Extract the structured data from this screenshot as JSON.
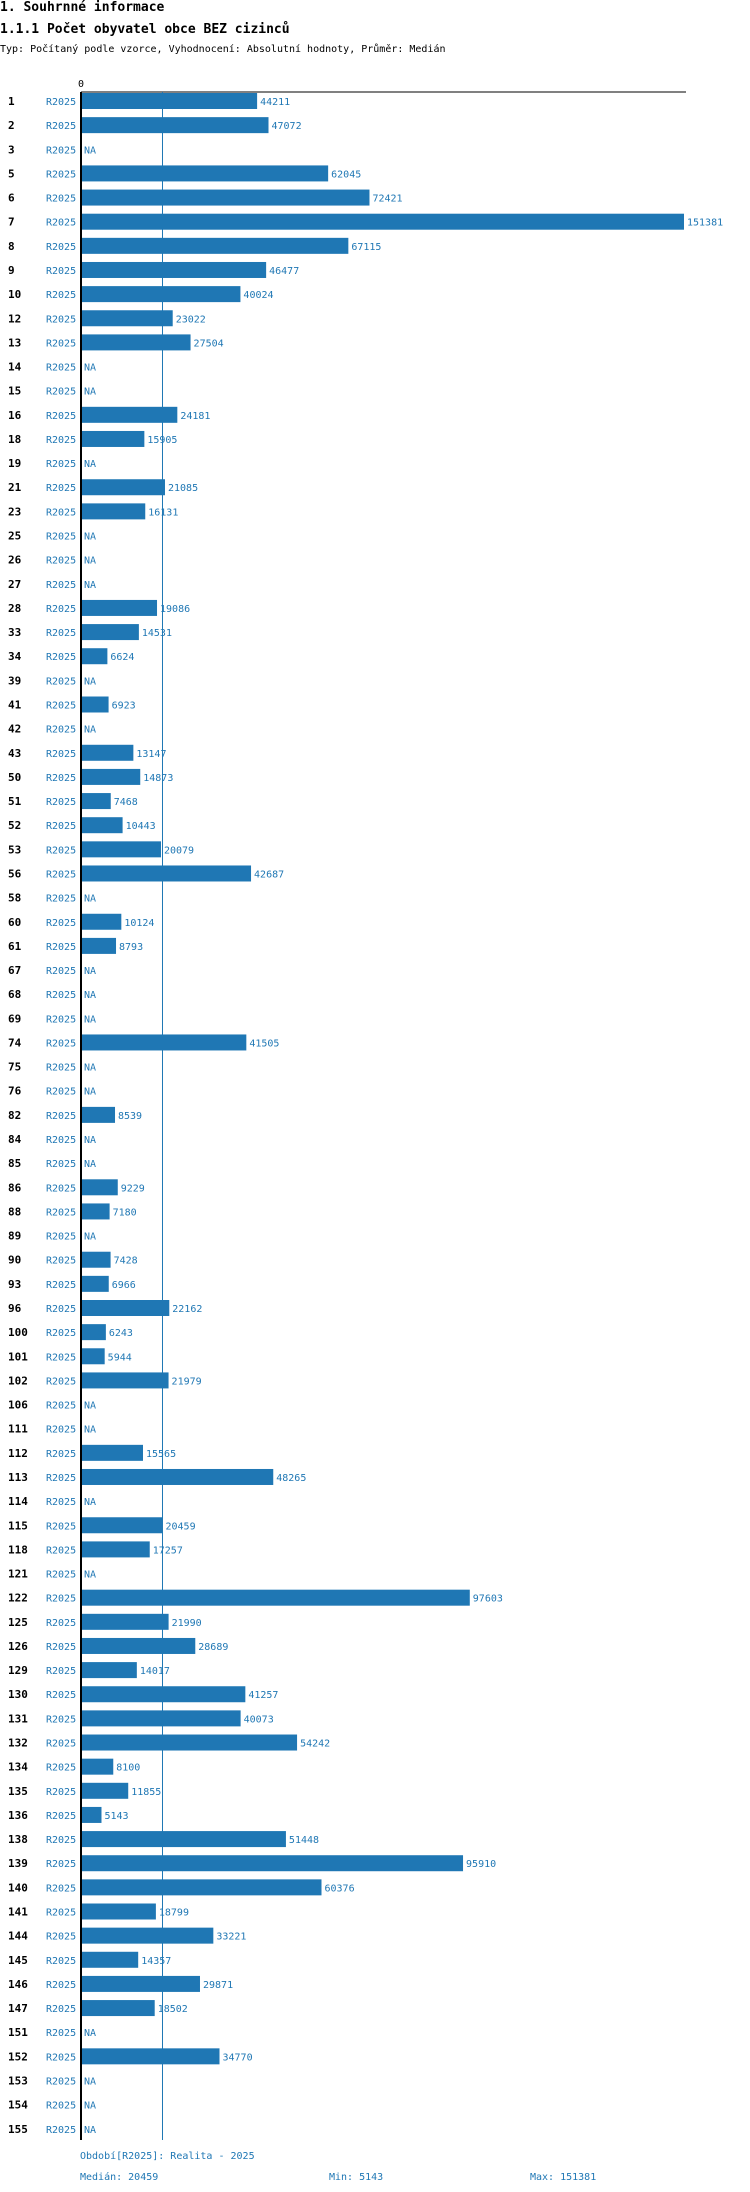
{
  "heading": "1. Souhrnné informace",
  "subheading": "1.1.1 Počet obyvatel obce BEZ cizinců",
  "description": "Typ: Počítaný podle vzorce, Vyhodnocení: Absolutní hodnoty, Průměr: Medián",
  "footer": {
    "period_line": "Období[R2025]: Realita - 2025",
    "median_label": "Medián: 20459",
    "min_label": "Min: 5143",
    "max_label": "Max: 151381"
  },
  "colors": {
    "bar": "#1f77b4",
    "axis": "#000000",
    "median_line": "#1f77b4"
  },
  "chart_data": {
    "type": "bar",
    "orientation": "horizontal",
    "title": "1.1.1 Počet obyvatel obce BEZ cizinců",
    "x_axis_start_label": "0",
    "xlim": [
      0,
      151381
    ],
    "median": 20459,
    "series_label": "R2025",
    "na_label": "NA",
    "categories": [
      "1",
      "2",
      "3",
      "5",
      "6",
      "7",
      "8",
      "9",
      "10",
      "12",
      "13",
      "14",
      "15",
      "16",
      "18",
      "19",
      "21",
      "23",
      "25",
      "26",
      "27",
      "28",
      "33",
      "34",
      "39",
      "41",
      "42",
      "43",
      "50",
      "51",
      "52",
      "53",
      "56",
      "58",
      "60",
      "61",
      "67",
      "68",
      "69",
      "74",
      "75",
      "76",
      "82",
      "84",
      "85",
      "86",
      "88",
      "89",
      "90",
      "93",
      "96",
      "100",
      "101",
      "102",
      "106",
      "111",
      "112",
      "113",
      "114",
      "115",
      "118",
      "121",
      "122",
      "125",
      "126",
      "129",
      "130",
      "131",
      "132",
      "134",
      "135",
      "136",
      "138",
      "139",
      "140",
      "141",
      "144",
      "145",
      "146",
      "147",
      "151",
      "152",
      "153",
      "154",
      "155"
    ],
    "values": [
      44211,
      47072,
      null,
      62045,
      72421,
      151381,
      67115,
      46477,
      40024,
      23022,
      27504,
      null,
      null,
      24181,
      15905,
      null,
      21085,
      16131,
      null,
      null,
      null,
      19086,
      14531,
      6624,
      null,
      6923,
      null,
      13147,
      14873,
      7468,
      10443,
      20079,
      42687,
      null,
      10124,
      8793,
      null,
      null,
      null,
      41505,
      null,
      null,
      8539,
      null,
      null,
      9229,
      7180,
      null,
      7428,
      6966,
      22162,
      6243,
      5944,
      21979,
      null,
      null,
      15565,
      48265,
      null,
      20459,
      17257,
      null,
      97603,
      21990,
      28689,
      14017,
      41257,
      40073,
      54242,
      8100,
      11855,
      5143,
      51448,
      95910,
      60376,
      18799,
      33221,
      14357,
      29871,
      18502,
      null,
      34770,
      null,
      null,
      null
    ]
  }
}
